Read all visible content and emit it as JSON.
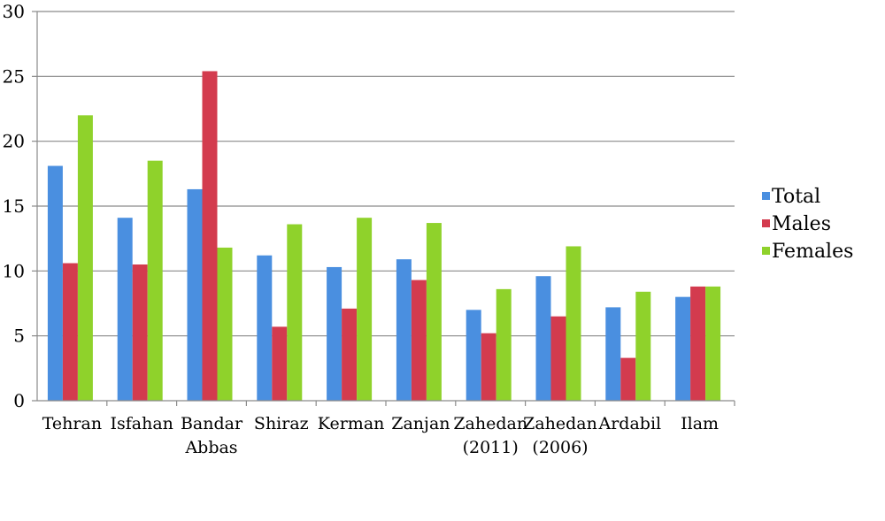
{
  "chart_data": {
    "type": "bar",
    "title": "",
    "xlabel": "",
    "ylabel": "",
    "ylim": [
      0,
      30
    ],
    "yticks": [
      0,
      5,
      10,
      15,
      20,
      25,
      30
    ],
    "grid": true,
    "legend_position": "right",
    "categories": [
      [
        "Tehran"
      ],
      [
        "Isfahan"
      ],
      [
        "Bandar",
        "Abbas"
      ],
      [
        "Shiraz"
      ],
      [
        "Kerman"
      ],
      [
        "Zanjan"
      ],
      [
        "Zahedan",
        "(2011)"
      ],
      [
        "Zahedan",
        "(2006)"
      ],
      [
        "Ardabil"
      ],
      [
        "Ilam"
      ]
    ],
    "series": [
      {
        "name": "Total",
        "color": "#4a8fe0",
        "values": [
          18.1,
          14.1,
          16.3,
          11.2,
          10.3,
          10.9,
          7.0,
          9.6,
          7.2,
          8.0
        ]
      },
      {
        "name": "Males",
        "color": "#d33b4e",
        "values": [
          10.6,
          10.5,
          25.4,
          5.7,
          7.1,
          9.3,
          5.2,
          6.5,
          3.3,
          8.8
        ]
      },
      {
        "name": "Females",
        "color": "#8fd22b",
        "values": [
          22.0,
          18.5,
          11.8,
          13.6,
          14.1,
          13.7,
          8.6,
          11.9,
          8.4,
          8.8
        ]
      }
    ]
  }
}
